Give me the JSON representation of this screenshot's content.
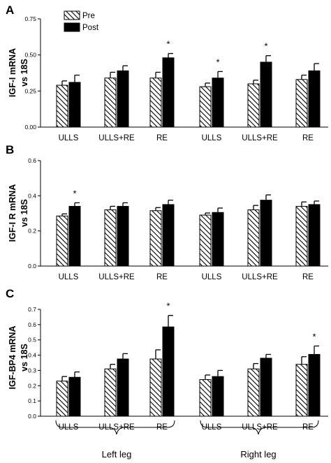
{
  "legend": {
    "pre_label": "Pre",
    "post_label": "Post"
  },
  "groups": {
    "left": "Left leg",
    "right": "Right leg"
  },
  "chart_data": [
    {
      "type": "bar",
      "panel": "A",
      "ylabel_line1": "IGF-I mRNA",
      "ylabel_line2": "vs 18S",
      "ylim": [
        0,
        0.75
      ],
      "yticks": [
        "0.00",
        "0.25",
        "0.50",
        "0.75"
      ],
      "categories": [
        "ULLS",
        "ULLS+RE",
        "RE",
        "ULLS",
        "ULLS+RE",
        "RE"
      ],
      "series": [
        {
          "name": "Pre",
          "values": [
            0.29,
            0.34,
            0.34,
            0.28,
            0.3,
            0.33
          ],
          "errors": [
            0.03,
            0.04,
            0.04,
            0.025,
            0.025,
            0.03
          ]
        },
        {
          "name": "Post",
          "values": [
            0.31,
            0.39,
            0.48,
            0.34,
            0.45,
            0.39
          ],
          "errors": [
            0.05,
            0.035,
            0.03,
            0.045,
            0.045,
            0.05
          ]
        }
      ],
      "significance": [
        false,
        false,
        true,
        true,
        true,
        false
      ],
      "significance_marker": "*"
    },
    {
      "type": "bar",
      "panel": "B",
      "ylabel_line1": "IGF-I R mRNA",
      "ylabel_line2": "vs 18S",
      "ylim": [
        0,
        0.6
      ],
      "yticks": [
        "0.0",
        "0.2",
        "0.4",
        "0.6"
      ],
      "categories": [
        "ULLS",
        "ULLS+RE",
        "RE",
        "ULLS",
        "ULLS+RE",
        "RE"
      ],
      "series": [
        {
          "name": "Pre",
          "values": [
            0.285,
            0.32,
            0.315,
            0.29,
            0.32,
            0.34
          ],
          "errors": [
            0.012,
            0.02,
            0.018,
            0.012,
            0.025,
            0.025
          ]
        },
        {
          "name": "Post",
          "values": [
            0.34,
            0.34,
            0.35,
            0.305,
            0.375,
            0.35
          ],
          "errors": [
            0.02,
            0.02,
            0.025,
            0.025,
            0.03,
            0.02
          ]
        }
      ],
      "significance": [
        true,
        false,
        false,
        false,
        false,
        false
      ],
      "significance_marker": "*"
    },
    {
      "type": "bar",
      "panel": "C",
      "ylabel_line1": "IGF-BP4 mRNA",
      "ylabel_line2": "vs 18S",
      "ylim": [
        0,
        0.7
      ],
      "yticks": [
        "0.0",
        "0.1",
        "0.2",
        "0.3",
        "0.4",
        "0.5",
        "0.6",
        "0.7"
      ],
      "categories": [
        "ULLS",
        "ULLS+RE",
        "RE",
        "ULLS",
        "ULLS+RE",
        "RE"
      ],
      "series": [
        {
          "name": "Pre",
          "values": [
            0.23,
            0.31,
            0.375,
            0.24,
            0.31,
            0.34
          ],
          "errors": [
            0.03,
            0.03,
            0.06,
            0.03,
            0.035,
            0.05
          ]
        },
        {
          "name": "Post",
          "values": [
            0.255,
            0.375,
            0.585,
            0.26,
            0.38,
            0.405
          ],
          "errors": [
            0.035,
            0.035,
            0.075,
            0.04,
            0.025,
            0.055
          ]
        }
      ],
      "significance": [
        false,
        false,
        true,
        false,
        false,
        true
      ],
      "significance_marker": "*"
    }
  ]
}
